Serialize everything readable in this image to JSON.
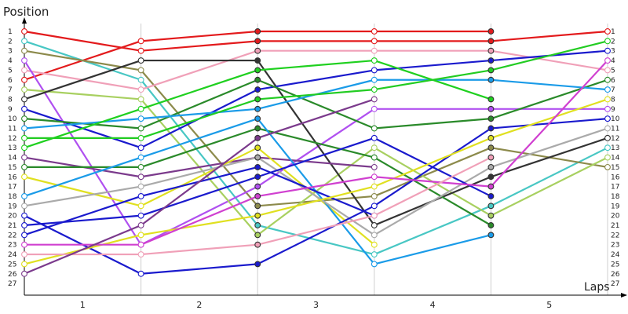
{
  "chart_data": {
    "type": "line",
    "title": "",
    "xlabel": "Laps",
    "ylabel": "Position",
    "x_ticks": [
      "1",
      "2",
      "3",
      "4",
      "5"
    ],
    "y_ticks": [
      "1",
      "2",
      "3",
      "4",
      "5",
      "6",
      "7",
      "8",
      "9",
      "10",
      "11",
      "12",
      "13",
      "14",
      "15",
      "16",
      "17",
      "18",
      "19",
      "20",
      "21",
      "22",
      "23",
      "24",
      "25",
      "26",
      "27"
    ],
    "ylim": [
      1,
      27
    ],
    "y_inverted": true,
    "grid": "vertical lines at each lap",
    "series": [
      {
        "color": "#e31a1c",
        "values": [
          1,
          3,
          2,
          2,
          2,
          1
        ]
      },
      {
        "color": "#e31a1c",
        "values": [
          6,
          2,
          1,
          1,
          1,
          null
        ]
      },
      {
        "color": "#48c7c4",
        "values": [
          2,
          6,
          21,
          24,
          19,
          13
        ]
      },
      {
        "color": "#8c8a4b",
        "values": [
          3,
          5,
          19,
          18,
          13,
          15
        ]
      },
      {
        "color": "#f0a0b8",
        "values": [
          5,
          7,
          3,
          3,
          3,
          5
        ]
      },
      {
        "color": "#b050f0",
        "values": [
          4,
          23,
          17,
          9,
          9,
          9
        ]
      },
      {
        "color": "#a8d060",
        "values": [
          7,
          8,
          22,
          13,
          20,
          14
        ]
      },
      {
        "color": "#333333",
        "values": [
          8,
          4,
          4,
          21,
          16,
          12
        ]
      },
      {
        "color": "#1a1acd",
        "values": [
          9,
          13,
          7,
          5,
          4,
          3
        ]
      },
      {
        "color": "#2a8a2a",
        "values": [
          10,
          11,
          6,
          11,
          10,
          6
        ]
      },
      {
        "color": "#1a9be8",
        "values": [
          11,
          10,
          9,
          6,
          6,
          7
        ]
      },
      {
        "color": "#22cc22",
        "values": [
          12,
          12,
          8,
          7,
          5,
          2
        ]
      },
      {
        "color": "#1fd01f",
        "values": [
          13,
          9,
          5,
          4,
          8,
          null
        ]
      },
      {
        "color": "#7b3a8c",
        "values": [
          14,
          16,
          14,
          15,
          null,
          null
        ]
      },
      {
        "color": "#2a8a2a",
        "values": [
          15,
          15,
          11,
          14,
          21,
          null
        ]
      },
      {
        "color": "#e0e020",
        "values": [
          16,
          19,
          13,
          23,
          null,
          null
        ]
      },
      {
        "color": "#1a9be8",
        "values": [
          18,
          14,
          10,
          25,
          22,
          null
        ]
      },
      {
        "color": "#aaaaaa",
        "values": [
          19,
          17,
          14,
          22,
          15,
          11
        ]
      },
      {
        "color": "#1a1acd",
        "values": [
          20,
          26,
          25,
          19,
          11,
          10
        ]
      },
      {
        "color": "#1a1acd",
        "values": [
          21,
          20,
          16,
          12,
          18,
          null
        ]
      },
      {
        "color": "#1a1acd",
        "values": [
          22,
          18,
          15,
          20,
          null,
          null
        ]
      },
      {
        "color": "#e0e020",
        "values": [
          25,
          22,
          20,
          17,
          12,
          8
        ]
      },
      {
        "color": "#d040d0",
        "values": [
          23,
          23,
          18,
          16,
          17,
          4
        ]
      },
      {
        "color": "#f0a0b8",
        "values": [
          24,
          24,
          23,
          20,
          14,
          null
        ]
      },
      {
        "color": "#7b3a8c",
        "values": [
          26,
          21,
          12,
          8,
          null,
          null
        ]
      }
    ]
  }
}
